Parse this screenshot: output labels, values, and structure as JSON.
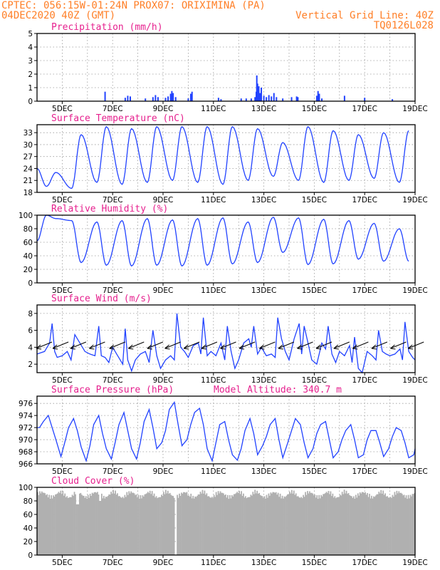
{
  "header": {
    "line1": "CPTEC:   056:15W-01:24N   PROX07: ORIXIMINA (PA)",
    "line2_left": "04DEC2020 40Z (GMT)",
    "line2_right": "Vertical Grid Line: 40Z",
    "line3_right": "TQ0126L028"
  },
  "colors": {
    "header_text": "#ff7f27",
    "panel_title": "#e6208e",
    "series_line": "#2142ff",
    "precip_bar": "#2142ff",
    "cloud_fill": "#b0b0b0",
    "wind_arrow": "#000000"
  },
  "chart_data": [
    {
      "type": "bar",
      "title": "Precipitation (mm/h)",
      "ylim": [
        0,
        5
      ],
      "yticks": [
        "0",
        "1",
        "2",
        "3",
        "4",
        "5"
      ],
      "xticks": [
        "5DEC",
        "7DEC",
        "9DEC",
        "11DEC",
        "13DEC",
        "15DEC",
        "17DEC",
        "19DEC"
      ],
      "xlim_days": [
        4.0,
        19.0
      ],
      "grid": true,
      "points": [
        [
          6.7,
          0.7
        ],
        [
          7.5,
          0.25
        ],
        [
          7.6,
          0.4
        ],
        [
          7.7,
          0.35
        ],
        [
          8.3,
          0.2
        ],
        [
          8.6,
          0.3
        ],
        [
          8.7,
          0.45
        ],
        [
          8.8,
          0.3
        ],
        [
          9.1,
          0.25
        ],
        [
          9.2,
          0.35
        ],
        [
          9.3,
          0.55
        ],
        [
          9.35,
          0.75
        ],
        [
          9.4,
          0.6
        ],
        [
          9.5,
          0.3
        ],
        [
          10.0,
          0.2
        ],
        [
          10.1,
          0.55
        ],
        [
          10.15,
          0.7
        ],
        [
          11.2,
          0.25
        ],
        [
          11.3,
          0.15
        ],
        [
          12.1,
          0.2
        ],
        [
          12.3,
          0.2
        ],
        [
          12.5,
          0.2
        ],
        [
          12.65,
          0.3
        ],
        [
          12.7,
          0.7
        ],
        [
          12.72,
          1.9
        ],
        [
          12.75,
          1.3
        ],
        [
          12.8,
          1.1
        ],
        [
          12.85,
          0.6
        ],
        [
          12.9,
          1.0
        ],
        [
          13.0,
          0.4
        ],
        [
          13.1,
          0.3
        ],
        [
          13.2,
          0.45
        ],
        [
          13.3,
          0.35
        ],
        [
          13.4,
          0.6
        ],
        [
          13.5,
          0.3
        ],
        [
          13.75,
          0.2
        ],
        [
          14.1,
          0.3
        ],
        [
          14.3,
          0.35
        ],
        [
          14.35,
          0.3
        ],
        [
          15.1,
          0.4
        ],
        [
          15.15,
          0.75
        ],
        [
          15.2,
          0.55
        ],
        [
          15.3,
          0.2
        ],
        [
          16.2,
          0.4
        ],
        [
          17.0,
          0.25
        ],
        [
          18.1,
          0.15
        ]
      ]
    },
    {
      "type": "line",
      "title": "Surface Temperature (nC)",
      "ylim": [
        18,
        35
      ],
      "yticks": [
        "18",
        "21",
        "24",
        "27",
        "30",
        "33"
      ],
      "xticks": [
        "5DEC",
        "7DEC",
        "9DEC",
        "11DEC",
        "13DEC",
        "15DEC",
        "17DEC",
        "19DEC"
      ],
      "xlim_days": [
        4.0,
        19.0
      ],
      "grid": true,
      "daily_pattern": {
        "night_hours_min": 9.0,
        "afternoon_hours_max": 18.0
      },
      "days": [
        4,
        5,
        6,
        7,
        8,
        9,
        10,
        11,
        12,
        13,
        14,
        15,
        16,
        17,
        18,
        19
      ],
      "day_min": [
        19.5,
        19.0,
        20.5,
        20.0,
        20.5,
        21.0,
        20.5,
        20.0,
        21.0,
        22.0,
        21.0,
        20.5,
        21.0,
        21.5,
        20.5,
        21.0
      ],
      "day_max": [
        23.0,
        32.5,
        34.5,
        34.0,
        34.5,
        34.5,
        34.5,
        34.5,
        34.0,
        30.5,
        34.5,
        33.5,
        32.5,
        33.0,
        33.5,
        34.0
      ]
    },
    {
      "type": "line",
      "title": "Relative Humidity (%)",
      "ylim": [
        0,
        100
      ],
      "yticks": [
        "0",
        "20",
        "40",
        "60",
        "80",
        "100"
      ],
      "xticks": [
        "5DEC",
        "7DEC",
        "9DEC",
        "11DEC",
        "13DEC",
        "15DEC",
        "17DEC",
        "19DEC"
      ],
      "xlim_days": [
        4.0,
        19.0
      ],
      "grid": true,
      "daily_pattern": {
        "night_hours_max": 9.0,
        "afternoon_hours_min": 18.0
      },
      "days": [
        4,
        5,
        6,
        7,
        8,
        9,
        10,
        11,
        12,
        13,
        14,
        15,
        16,
        17,
        18,
        19
      ],
      "day_max": [
        100,
        92,
        90,
        92,
        95,
        93,
        95,
        96,
        90,
        97,
        96,
        94,
        92,
        88,
        80,
        90
      ],
      "day_min": [
        95,
        30,
        26,
        25,
        26,
        25,
        26,
        28,
        30,
        45,
        27,
        28,
        35,
        32,
        32,
        35
      ]
    },
    {
      "type": "line",
      "title": "Surface Wind (m/s)",
      "ylim": [
        1,
        9
      ],
      "yticks": [
        "2",
        "4",
        "6",
        "8"
      ],
      "xticks": [
        "5DEC",
        "7DEC",
        "9DEC",
        "11DEC",
        "13DEC",
        "15DEC",
        "17DEC",
        "19DEC"
      ],
      "xlim_days": [
        4.0,
        19.0
      ],
      "grid": true,
      "x_days": [
        4.0,
        4.3,
        4.5,
        4.6,
        4.7,
        4.8,
        5.0,
        5.2,
        5.35,
        5.5,
        5.7,
        5.9,
        6.1,
        6.3,
        6.45,
        6.55,
        6.7,
        6.85,
        7.0,
        7.2,
        7.4,
        7.5,
        7.6,
        7.75,
        7.9,
        8.1,
        8.3,
        8.45,
        8.6,
        8.75,
        8.9,
        9.1,
        9.3,
        9.45,
        9.55,
        9.7,
        9.85,
        10.0,
        10.2,
        10.4,
        10.5,
        10.6,
        10.75,
        10.9,
        11.1,
        11.3,
        11.45,
        11.55,
        11.7,
        11.85,
        12.0,
        12.2,
        12.4,
        12.5,
        12.6,
        12.75,
        12.9,
        13.1,
        13.3,
        13.45,
        13.55,
        13.7,
        13.85,
        14.0,
        14.2,
        14.4,
        14.5,
        14.6,
        14.75,
        14.9,
        15.1,
        15.3,
        15.45,
        15.55,
        15.7,
        15.85,
        16.0,
        16.2,
        16.4,
        16.5,
        16.6,
        16.75,
        16.9,
        17.1,
        17.3,
        17.45,
        17.55,
        17.7,
        17.85,
        18.0,
        18.2,
        18.4,
        18.5,
        18.6,
        18.75,
        18.9,
        19.0
      ],
      "y_ms": [
        3.2,
        3.5,
        4.5,
        6.8,
        3.5,
        2.8,
        3.0,
        3.5,
        2.5,
        5.5,
        4.5,
        3.5,
        3.2,
        3.0,
        6.5,
        3.0,
        2.8,
        2.2,
        4.0,
        3.0,
        2.0,
        6.2,
        2.5,
        1.2,
        2.5,
        3.2,
        3.5,
        2.2,
        6.0,
        3.0,
        1.5,
        2.5,
        3.0,
        2.5,
        8.0,
        4.0,
        3.5,
        2.8,
        4.2,
        4.5,
        3.2,
        7.5,
        3.0,
        3.5,
        3.0,
        4.5,
        2.5,
        6.5,
        3.5,
        1.5,
        2.5,
        4.5,
        5.0,
        4.0,
        6.5,
        3.2,
        4.0,
        3.0,
        3.2,
        2.8,
        7.5,
        5.0,
        3.5,
        2.5,
        5.0,
        6.8,
        3.2,
        6.5,
        4.5,
        2.5,
        2.0,
        4.5,
        3.8,
        6.5,
        3.2,
        2.2,
        3.5,
        3.0,
        4.2,
        2.2,
        5.2,
        1.5,
        1.0,
        3.5,
        3.0,
        2.5,
        6.0,
        3.5,
        3.2,
        3.0,
        3.2,
        3.8,
        2.5,
        7.0,
        3.5,
        2.8,
        2.5
      ],
      "wind_arrows_x_days": [
        4.2,
        4.85,
        5.55,
        6.3,
        7.1,
        7.85,
        8.6,
        9.3,
        10.05,
        10.75,
        11.5,
        12.25,
        13.05,
        13.8,
        14.55,
        15.3,
        16.0,
        16.75,
        17.5,
        18.25,
        18.95
      ]
    },
    {
      "type": "line",
      "title": "Surface Pressure (hPa)",
      "annotation": "Model Altitude: 340.7 m",
      "ylim": [
        966,
        977.2
      ],
      "yticks": [
        "966",
        "968",
        "970",
        "972",
        "974",
        "976"
      ],
      "xticks": [
        "5DEC",
        "7DEC",
        "9DEC",
        "11DEC",
        "13DEC",
        "15DEC",
        "17DEC",
        "19DEC"
      ],
      "xlim_days": [
        4.0,
        19.0
      ],
      "grid": true,
      "x_days": [
        4.0,
        4.1,
        4.25,
        4.45,
        4.6,
        4.75,
        4.95,
        5.1,
        5.25,
        5.45,
        5.6,
        5.75,
        5.95,
        6.1,
        6.25,
        6.45,
        6.6,
        6.75,
        6.95,
        7.1,
        7.25,
        7.45,
        7.6,
        7.75,
        7.95,
        8.1,
        8.25,
        8.45,
        8.6,
        8.75,
        8.95,
        9.1,
        9.25,
        9.45,
        9.6,
        9.75,
        9.95,
        10.1,
        10.25,
        10.45,
        10.6,
        10.75,
        10.95,
        11.1,
        11.25,
        11.45,
        11.6,
        11.75,
        11.95,
        12.1,
        12.25,
        12.45,
        12.6,
        12.75,
        12.95,
        13.1,
        13.25,
        13.45,
        13.6,
        13.75,
        13.95,
        14.1,
        14.25,
        14.45,
        14.6,
        14.75,
        14.95,
        15.1,
        15.25,
        15.45,
        15.6,
        15.75,
        15.95,
        16.1,
        16.25,
        16.45,
        16.6,
        16.75,
        16.95,
        17.1,
        17.25,
        17.45,
        17.6,
        17.75,
        17.95,
        18.1,
        18.25,
        18.45,
        18.6,
        18.75,
        18.95,
        19.0
      ],
      "y_hpa": [
        972.0,
        972.0,
        973.0,
        974.0,
        972.0,
        970.0,
        967.2,
        969.5,
        972.0,
        973.5,
        971.5,
        968.8,
        966.5,
        969.0,
        972.5,
        974.0,
        971.0,
        968.5,
        966.8,
        969.5,
        972.5,
        974.5,
        971.5,
        968.5,
        966.8,
        969.5,
        973.0,
        975.0,
        972.0,
        968.5,
        969.5,
        971.5,
        975.0,
        976.2,
        972.5,
        969.0,
        970.0,
        972.5,
        974.5,
        975.2,
        972.5,
        968.5,
        966.5,
        969.5,
        972.5,
        973.0,
        970.0,
        967.5,
        966.6,
        968.5,
        971.5,
        973.5,
        971.0,
        967.5,
        969.0,
        970.5,
        972.5,
        973.5,
        970.0,
        967.0,
        969.5,
        971.5,
        973.5,
        972.5,
        969.5,
        967.0,
        968.5,
        971.0,
        972.5,
        973.0,
        970.0,
        967.0,
        968.0,
        970.0,
        971.5,
        972.5,
        970.0,
        967.0,
        967.5,
        970.0,
        971.5,
        971.5,
        969.5,
        967.2,
        968.5,
        970.5,
        972.0,
        971.5,
        969.5,
        967.0,
        967.5,
        968.5
      ]
    },
    {
      "type": "area",
      "title": "Cloud Cover (%)",
      "ylim": [
        0,
        100
      ],
      "yticks": [
        "0",
        "20",
        "40",
        "60",
        "80",
        "100"
      ],
      "xticks": [
        "5DEC",
        "7DEC",
        "9DEC",
        "11DEC",
        "13DEC",
        "15DEC",
        "17DEC",
        "19DEC"
      ],
      "xlim_days": [
        4.0,
        19.0
      ],
      "grid": true,
      "typical_percent": 93,
      "notable": [
        [
          5.6,
          75
        ],
        [
          6.5,
          80
        ],
        [
          9.5,
          0
        ],
        [
          10.0,
          88
        ]
      ]
    }
  ]
}
